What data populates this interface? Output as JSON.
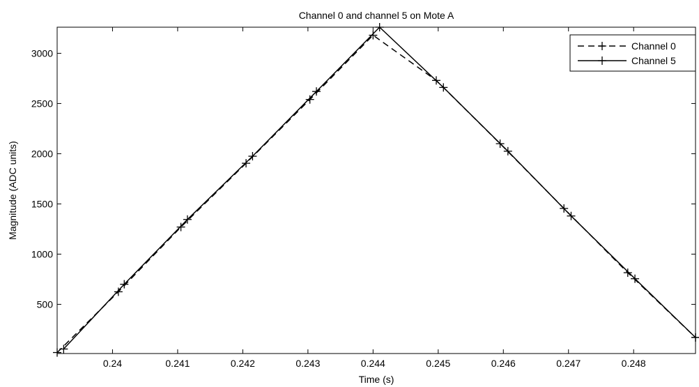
{
  "chart_data": {
    "type": "line",
    "title": "Channel 0 and channel 5 on Mote A",
    "xlabel": "Time (s)",
    "ylabel": "Magnitude (ADC units)",
    "xlim": [
      0.23915,
      0.24895
    ],
    "ylim": [
      10,
      3260
    ],
    "xticks": [
      0.24,
      0.241,
      0.242,
      0.243,
      0.244,
      0.245,
      0.246,
      0.247,
      0.248
    ],
    "xtick_labels": [
      "0.24",
      "0.241",
      "0.242",
      "0.243",
      "0.244",
      "0.245",
      "0.246",
      "0.247",
      "0.248"
    ],
    "yticks": [
      500,
      1000,
      1500,
      2000,
      2500,
      3000
    ],
    "ytick_labels": [
      "500",
      "1000",
      "1500",
      "2000",
      "2500",
      "3000"
    ],
    "grid": false,
    "legend_position": "top-right",
    "series": [
      {
        "name": "Channel 0",
        "style": "dashed",
        "marker": "+",
        "color": "#000000",
        "x": [
          0.23915,
          0.24009,
          0.24105,
          0.24205,
          0.24303,
          0.244,
          0.24497,
          0.24595,
          0.24693,
          0.24791,
          0.24895
        ],
        "y": [
          20,
          625,
          1270,
          1905,
          2540,
          3180,
          2730,
          2100,
          1455,
          815,
          170
        ]
      },
      {
        "name": "Channel 5",
        "style": "solid",
        "marker": "+",
        "color": "#000000",
        "x": [
          0.23925,
          0.24018,
          0.24115,
          0.24215,
          0.24313,
          0.2441,
          0.24508,
          0.24607,
          0.24704,
          0.24802,
          0.24895
        ],
        "y": [
          55,
          700,
          1345,
          1975,
          2620,
          3260,
          2660,
          2025,
          1380,
          755,
          170
        ]
      }
    ]
  }
}
